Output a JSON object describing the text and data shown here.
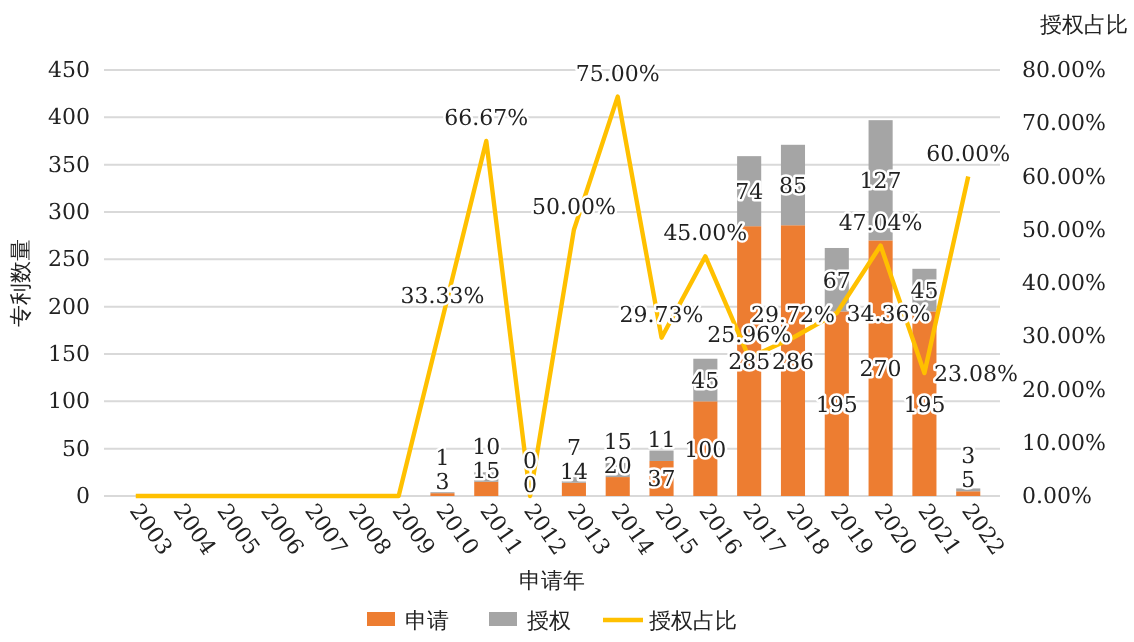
{
  "chart_data": {
    "type": "bar",
    "stacked": true,
    "xlabel": "申请年",
    "ylabel": "专利数量",
    "y2label": "授权占比",
    "categories": [
      "2003",
      "2004",
      "2005",
      "2006",
      "2007",
      "2008",
      "2009",
      "2010",
      "2011",
      "2012",
      "2013",
      "2014",
      "2015",
      "2016",
      "2017",
      "2018",
      "2019",
      "2020",
      "2021",
      "2022"
    ],
    "series": [
      {
        "name": "申请",
        "color": "#ed7d31",
        "values": [
          0,
          0,
          0,
          0,
          0,
          0,
          0,
          3,
          15,
          0,
          14,
          20,
          37,
          100,
          285,
          286,
          195,
          270,
          195,
          5
        ],
        "value_labels": [
          null,
          null,
          null,
          null,
          null,
          null,
          null,
          "3",
          "15",
          "0",
          "14",
          "20",
          "37",
          "100",
          "285",
          "286",
          "195",
          "270",
          "195",
          "5"
        ]
      },
      {
        "name": "授权",
        "color": "#a5a5a5",
        "values": [
          0,
          0,
          0,
          0,
          0,
          0,
          0,
          1,
          10,
          0,
          7,
          15,
          11,
          45,
          74,
          85,
          67,
          127,
          45,
          3
        ],
        "value_labels": [
          null,
          null,
          null,
          null,
          null,
          null,
          null,
          "1",
          "10",
          "0",
          "7",
          "15",
          "11",
          "45",
          "74",
          "85",
          "67",
          "127",
          "45",
          "3"
        ]
      },
      {
        "name": "授权占比",
        "type": "line",
        "axis": "y2",
        "color": "#ffc000",
        "values": [
          0,
          0,
          0,
          0,
          0,
          0,
          0,
          33.33,
          66.67,
          0,
          50,
          75,
          29.73,
          45,
          25.96,
          29.72,
          34.36,
          47.04,
          23.08,
          60
        ],
        "value_labels": [
          null,
          null,
          null,
          null,
          null,
          null,
          null,
          "33.33%",
          "66.67%",
          null,
          "50.00%",
          "75.00%",
          "29.73%",
          "45.00%",
          "25.96%",
          "29.72%",
          "34.36%",
          "47.04%",
          "23.08%",
          "60.00%"
        ]
      }
    ],
    "ylim": [
      0,
      450
    ],
    "yticks": [
      0,
      50,
      100,
      150,
      200,
      250,
      300,
      350,
      400,
      450
    ],
    "y2lim": [
      0,
      80
    ],
    "y2ticks": [
      {
        "value": 0,
        "label": "0.00%"
      },
      {
        "value": 10,
        "label": "10.00%"
      },
      {
        "value": 20,
        "label": "20.00%"
      },
      {
        "value": 30,
        "label": "30.00%"
      },
      {
        "value": 40,
        "label": "40.00%"
      },
      {
        "value": 50,
        "label": "50.00%"
      },
      {
        "value": 60,
        "label": "60.00%"
      },
      {
        "value": 70,
        "label": "70.00%"
      },
      {
        "value": 80,
        "label": "80.00%"
      }
    ],
    "grid": "y",
    "legend": "bottom"
  }
}
